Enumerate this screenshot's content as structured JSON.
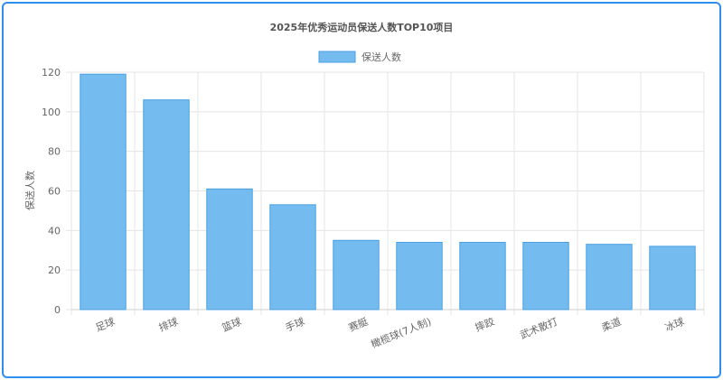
{
  "chart_data": {
    "type": "bar",
    "title": "2025年优秀运动员保送人数TOP10项目",
    "ylabel": "保送人数",
    "xlabel": "",
    "legend": {
      "position": "top",
      "label": "保送人数"
    },
    "categories": [
      "足球",
      "排球",
      "篮球",
      "手球",
      "赛艇",
      "橄榄球(7人制)",
      "摔跤",
      "武术散打",
      "柔道",
      "冰球"
    ],
    "series": [
      {
        "name": "保送人数",
        "values": [
          119,
          106,
          61,
          53,
          35,
          34,
          34,
          34,
          33,
          32
        ]
      }
    ],
    "ylim": [
      0,
      120
    ],
    "yticks": [
      0,
      20,
      40,
      60,
      80,
      100,
      120
    ],
    "grid": true,
    "colors": {
      "bar_fill": "#74bcf0",
      "bar_border": "#4a9fe0",
      "grid": "#e5e5e5",
      "frame": "#2f8ff0"
    }
  }
}
